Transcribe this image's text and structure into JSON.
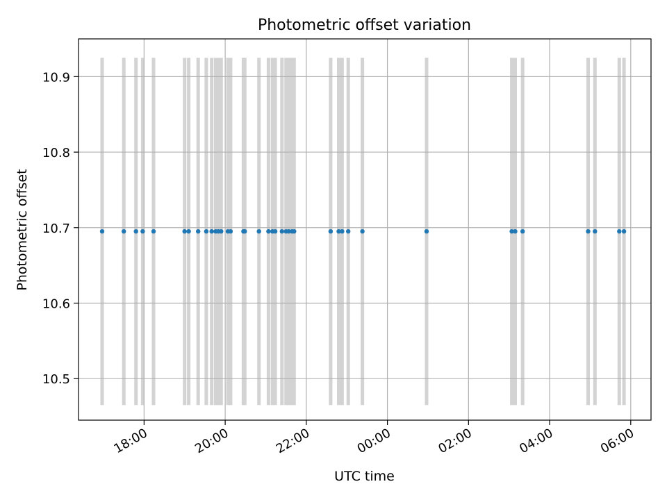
{
  "chart_data": {
    "type": "scatter",
    "title": "Photometric offset variation",
    "xlabel": "UTC time",
    "ylabel": "Photometric offset",
    "ylim": [
      10.445,
      10.95
    ],
    "xlim": [
      "16:23",
      "06:30 +1d"
    ],
    "x_tick_labels": [
      "18:00",
      "20:00",
      "22:00",
      "00:00",
      "02:00",
      "04:00",
      "06:00"
    ],
    "y_ticks": [
      10.5,
      10.6,
      10.7,
      10.8,
      10.9
    ],
    "y_tick_labels": [
      "10.5",
      "10.6",
      "10.7",
      "10.8",
      "10.9"
    ],
    "grid": true,
    "point_color": "#1f77b4",
    "band_color": "#d3d3d3",
    "band_range": [
      10.465,
      10.925
    ],
    "series": [
      {
        "x": [
          "16:58",
          "17:30",
          "17:48",
          "17:58",
          "18:14",
          "19:00",
          "19:06",
          "19:20",
          "19:32",
          "19:40",
          "19:46",
          "19:50",
          "19:54",
          "20:04",
          "20:08",
          "20:27",
          "20:29",
          "20:50",
          "21:04",
          "21:10",
          "21:14",
          "21:24",
          "21:30",
          "21:34",
          "21:39",
          "21:42",
          "22:36",
          "22:48",
          "22:53",
          "23:02",
          "23:23",
          "00:58",
          "03:04",
          "03:09",
          "03:20",
          "04:57",
          "05:07",
          "05:43",
          "05:50"
        ],
        "y": [
          10.695,
          10.695,
          10.695,
          10.695,
          10.695,
          10.695,
          10.695,
          10.695,
          10.695,
          10.695,
          10.695,
          10.695,
          10.695,
          10.695,
          10.695,
          10.695,
          10.695,
          10.695,
          10.695,
          10.695,
          10.695,
          10.695,
          10.695,
          10.695,
          10.695,
          10.695,
          10.695,
          10.695,
          10.695,
          10.695,
          10.695,
          10.695,
          10.695,
          10.695,
          10.695,
          10.695,
          10.695,
          10.695,
          10.695
        ]
      }
    ]
  }
}
